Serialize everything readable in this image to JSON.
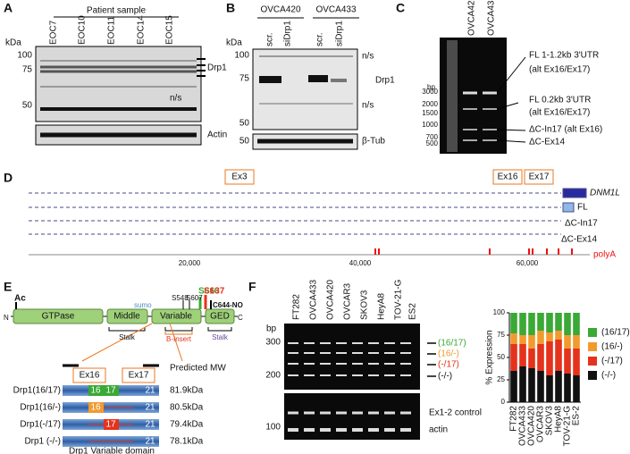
{
  "panel_labels": [
    "A",
    "B",
    "C",
    "D",
    "E",
    "F"
  ],
  "A": {
    "header": "Patient sample",
    "samples": [
      "EOC7",
      "EOC10",
      "EOC11",
      "EOC14",
      "EOC15"
    ],
    "kda": "kDa",
    "markers": [
      "100",
      "75",
      "50"
    ],
    "labels": [
      "Drp1",
      "n/s",
      "Actin"
    ]
  },
  "B": {
    "groups": [
      "OVCA420",
      "OVCA433"
    ],
    "lanes": [
      "scr.",
      "siDrp1",
      "scr.",
      "siDrp1"
    ],
    "kda": "kDa",
    "markers": [
      "100",
      "75",
      "50",
      "50"
    ],
    "labels": [
      "n/s",
      "Drp1",
      "n/s",
      "β-Tub"
    ]
  },
  "C": {
    "lanes": [
      "OVCA420",
      "OVCA433"
    ],
    "bp": "bp",
    "markers": [
      "3000",
      "2000",
      "1500",
      "1000",
      "700",
      "500"
    ],
    "annotations": [
      "FL 1-1.2kb 3'UTR",
      "(alt Ex16/Ex17)",
      "FL 0.2kb 3'UTR",
      "(alt Ex16/Ex17)",
      "ΔC-In17 (alt Ex16)",
      "ΔC-Ex14"
    ]
  },
  "D": {
    "exons": [
      "Ex3",
      "Ex16",
      "Ex17"
    ],
    "tracks": [
      "DNM1L",
      "FL",
      "ΔC-In17",
      "ΔC-Ex14"
    ],
    "axis": [
      "20,000",
      "40,000",
      "60,000"
    ],
    "polyA": "polyA"
  },
  "E": {
    "ac": "Ac",
    "n": "N",
    "c": "C",
    "domains": [
      "GTPase",
      "Middle",
      "Variable",
      "GED"
    ],
    "stalk": "Stalk",
    "binsert": "B-Insert",
    "sites": [
      "sumo",
      "S548",
      "S607",
      "S616",
      "S637",
      "C644-NO"
    ],
    "exons": [
      "Ex16",
      "Ex17"
    ],
    "mw_header": "Predicted MW",
    "exon_numbers": [
      "16",
      "17",
      "21"
    ],
    "isoforms": [
      {
        "name": "Drp1(16/17)",
        "mw": "81.9kDa"
      },
      {
        "name": "Drp1(16/-)",
        "mw": "80.5kDa"
      },
      {
        "name": "Drp1(-/17)",
        "mw": "79.4kDa"
      },
      {
        "name": "Drp1 (-/-)",
        "mw": "78.1kDa"
      }
    ],
    "caption": "Drp1 Variable domain"
  },
  "F": {
    "lanes": [
      "FT282",
      "OVCA433",
      "OVCA420",
      "OVCAR3",
      "SKOV3",
      "HeyA8",
      "TOV-21-G",
      "ES2"
    ],
    "bp": "bp",
    "markers": [
      "300",
      "200",
      "100"
    ],
    "bands": [
      "(16/17)",
      "(16/-)",
      "(-/17)",
      "(-/-)"
    ],
    "labels": [
      "Ex1-2 control",
      "actin"
    ],
    "chart": {
      "type": "bar",
      "stacked": true,
      "ylabel": "% Expression",
      "categories": [
        "FT282",
        "OVCA433",
        "OVCA420",
        "OVCAR3",
        "SKOV3",
        "HeyA8",
        "TOV-21-G",
        "ES-2"
      ],
      "series": [
        {
          "name": "(16/17)",
          "color": "#3aa935",
          "values": [
            23,
            25,
            25,
            20,
            22,
            20,
            25,
            25
          ]
        },
        {
          "name": "(16/-)",
          "color": "#f29a2e",
          "values": [
            12,
            10,
            15,
            15,
            10,
            10,
            15,
            15
          ]
        },
        {
          "name": "(-/17)",
          "color": "#e5321c",
          "values": [
            30,
            25,
            22,
            30,
            38,
            35,
            28,
            30
          ]
        },
        {
          "name": "(-/-)",
          "color": "#111111",
          "values": [
            35,
            40,
            38,
            35,
            30,
            35,
            32,
            30
          ]
        }
      ],
      "ylim": [
        0,
        100
      ],
      "yticks": [
        0,
        25,
        50,
        75,
        100
      ]
    }
  }
}
